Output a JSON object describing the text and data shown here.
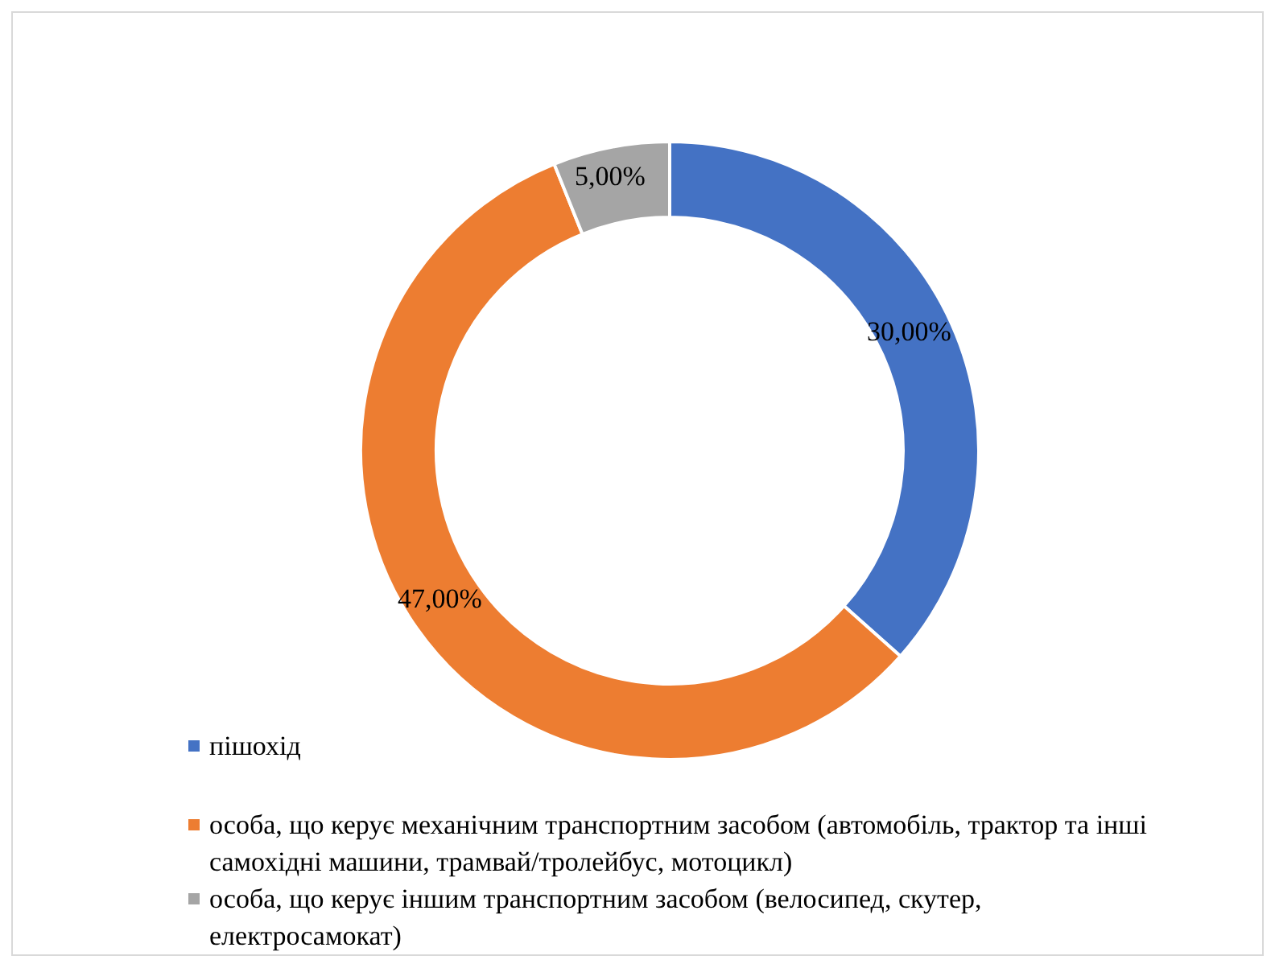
{
  "chart_data": {
    "type": "donut",
    "categories": [
      "пішохід",
      "особа, що керує механічним транспортним засобом (автомобіль, трактор та інші самохідні машини, трамвай/тролейбус, мотоцикл)",
      "особа, що керує іншим транспортним засобом (велосипед, скутер, електросамокат)"
    ],
    "values": [
      30,
      47,
      5
    ],
    "colors": [
      "#4472c4",
      "#ed7d31",
      "#a5a5a5"
    ],
    "value_labels": [
      "30,00%",
      "47,00%",
      "5,00%"
    ],
    "legend": "bottom"
  }
}
